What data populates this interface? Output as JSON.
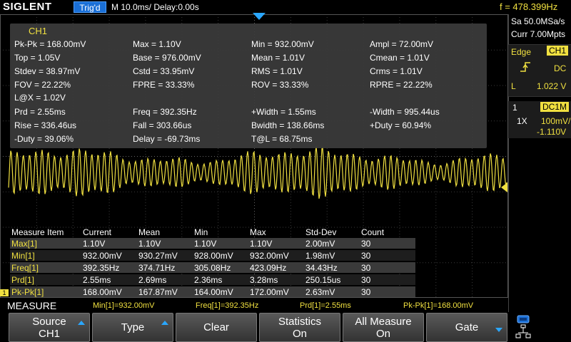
{
  "topbar": {
    "brand": "SIGLENT",
    "trigger_status": "Trig'd",
    "timebase": "M 10.0ms/ Delay:0.00s",
    "frequency": "f = 478.399Hz"
  },
  "right_panel": {
    "sample_rate": "Sa 50.0MSa/s",
    "memory_depth": "Curr 7.00Mpts",
    "trigger": {
      "type_label": "Edge",
      "source": "CH1",
      "slope_icon": "rising-edge-icon",
      "coupling": "DC",
      "level_label": "L",
      "level_value": "1.022 V"
    },
    "channel": {
      "number": "1",
      "coupling": "DC1M",
      "probe": "1X",
      "scale": "100mV/",
      "offset": "-1.110V"
    }
  },
  "measure_panel": {
    "title": "CH1",
    "items": [
      [
        "Pk-Pk = 168.00mV",
        "Max = 1.10V",
        "Min = 932.00mV",
        "Ampl = 72.00mV"
      ],
      [
        "Top = 1.05V",
        "Base = 976.00mV",
        "Mean = 1.01V",
        "Cmean = 1.01V"
      ],
      [
        "Stdev = 38.97mV",
        "Cstd = 33.95mV",
        "RMS = 1.01V",
        "Crms = 1.01V"
      ],
      [
        "FOV = 22.22%",
        "FPRE = 33.33%",
        "ROV = 33.33%",
        "RPRE = 22.22%"
      ],
      [
        "L@X = 1.02V",
        "",
        "",
        ""
      ],
      [
        "Prd = 2.55ms",
        "Freq = 392.35Hz",
        "+Width = 1.55ms",
        "-Width = 995.44us"
      ],
      [
        "Rise = 336.46us",
        "Fall = 303.66us",
        "Bwidth = 138.66ms",
        "+Duty = 60.94%"
      ],
      [
        "-Duty = 39.06%",
        "Delay = -69.73ms",
        "T@L = 68.75ms",
        ""
      ]
    ]
  },
  "stats_table": {
    "headers": [
      "Measure Item",
      "Current",
      "Mean",
      "Min",
      "Max",
      "Std-Dev",
      "Count"
    ],
    "rows": [
      [
        "Max[1]",
        "1.10V",
        "1.10V",
        "1.10V",
        "1.10V",
        "2.00mV",
        "30"
      ],
      [
        "Min[1]",
        "932.00mV",
        "930.27mV",
        "928.00mV",
        "932.00mV",
        "1.98mV",
        "30"
      ],
      [
        "Freq[1]",
        "392.35Hz",
        "374.71Hz",
        "305.08Hz",
        "423.09Hz",
        "34.43Hz",
        "30"
      ],
      [
        "Prd[1]",
        "2.55ms",
        "2.69ms",
        "2.36ms",
        "3.28ms",
        "250.15us",
        "30"
      ],
      [
        "Pk-Pk[1]",
        "168.00mV",
        "167.87mV",
        "164.00mV",
        "172.00mV",
        "2.63mV",
        "30"
      ]
    ]
  },
  "status_line": {
    "menu_name": "MEASURE",
    "items": [
      "Min[1]=932.00mV",
      "Freq[1]=392.35Hz",
      "Prd[1]=2.55ms",
      "Pk-Pk[1]=168.00mV"
    ]
  },
  "softkeys": {
    "source_l1": "Source",
    "source_l2": "CH1",
    "type": "Type",
    "clear": "Clear",
    "statistics_l1": "Statistics",
    "statistics_l2": "On",
    "all_measure_l1": "All Measure",
    "all_measure_l2": "On",
    "gate": "Gate"
  },
  "markers": {
    "channel_marker": "1"
  },
  "colors": {
    "ch1": "#f0e040",
    "accent": "#2aa7ff",
    "grid": "#3a3a3a"
  }
}
